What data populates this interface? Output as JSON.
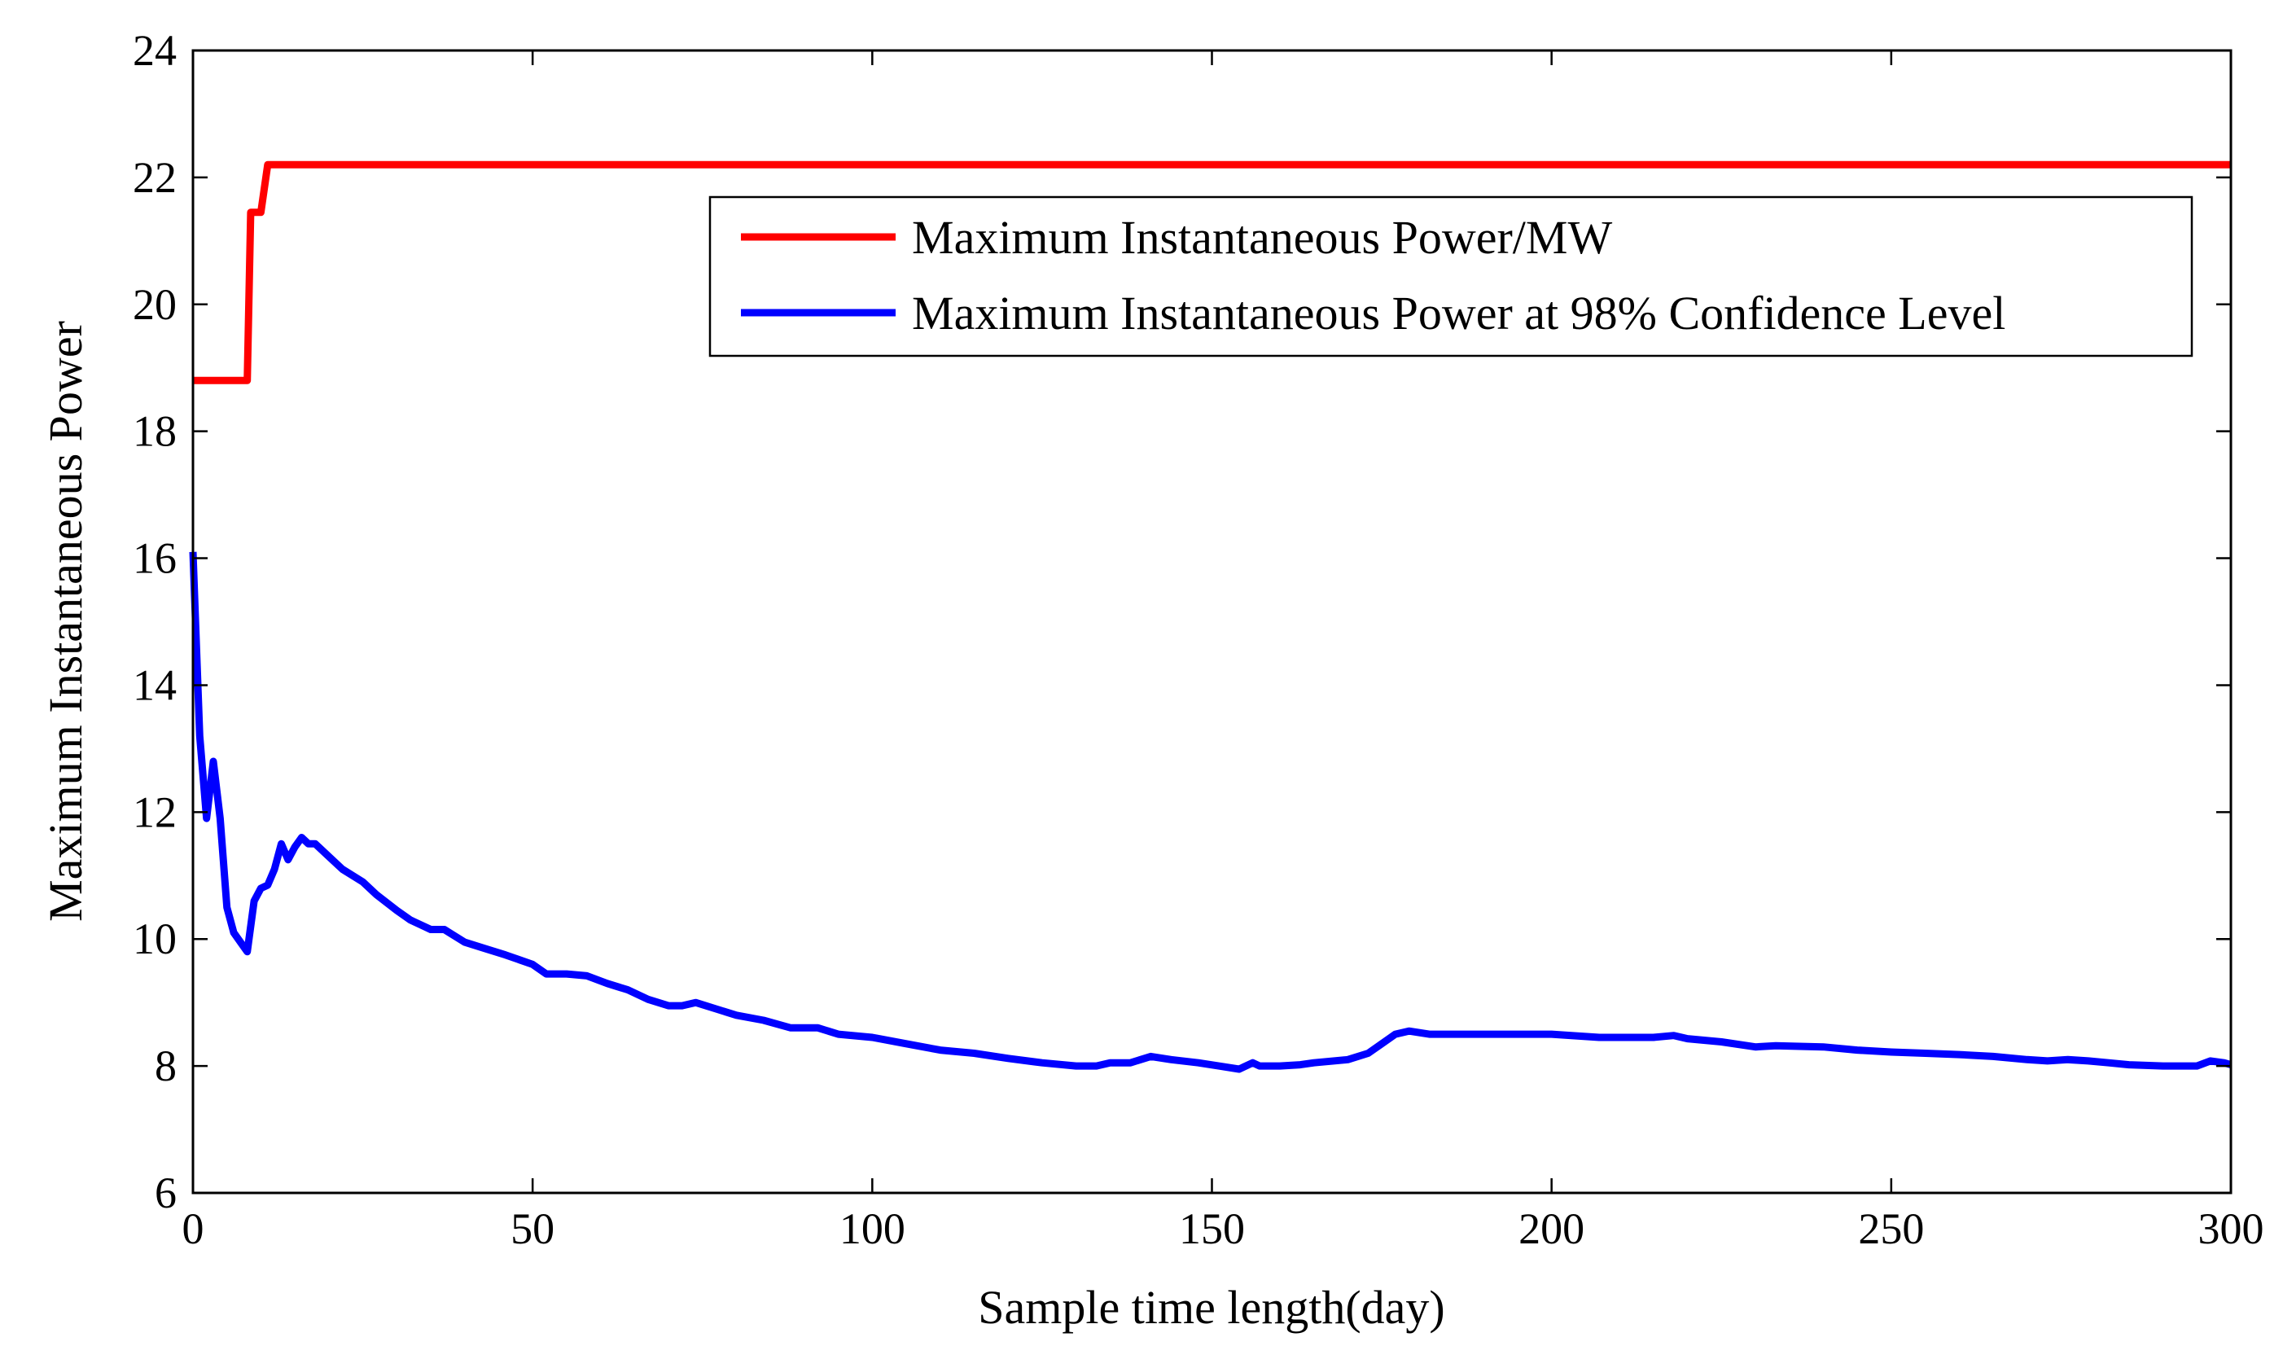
{
  "chart_data": {
    "type": "line",
    "title": "",
    "xlabel": "Sample time length(day)",
    "ylabel": "Maximum Instantaneous Power",
    "xlim": [
      0,
      300
    ],
    "ylim": [
      6,
      24
    ],
    "xticks": [
      0,
      50,
      100,
      150,
      200,
      250,
      300
    ],
    "yticks": [
      6,
      8,
      10,
      12,
      14,
      16,
      18,
      20,
      22,
      24
    ],
    "grid": false,
    "legend_position": "top-right",
    "series": [
      {
        "name": "Maximum Instantaneous Power/MW",
        "color": "#ff0000",
        "points": [
          [
            0,
            18.8
          ],
          [
            8,
            18.8
          ],
          [
            8.5,
            21.45
          ],
          [
            10,
            21.45
          ],
          [
            11,
            22.2
          ],
          [
            300,
            22.2
          ]
        ]
      },
      {
        "name": "Maximum Instantaneous Power at 98% Confidence Level",
        "color": "#0000ff",
        "points": [
          [
            0,
            16.1
          ],
          [
            1,
            13.2
          ],
          [
            2,
            11.9
          ],
          [
            3,
            12.8
          ],
          [
            4,
            11.9
          ],
          [
            5,
            10.5
          ],
          [
            6,
            10.1
          ],
          [
            7,
            9.95
          ],
          [
            8,
            9.8
          ],
          [
            9,
            10.6
          ],
          [
            10,
            10.8
          ],
          [
            11,
            10.85
          ],
          [
            12,
            11.1
          ],
          [
            13,
            11.5
          ],
          [
            14,
            11.25
          ],
          [
            15,
            11.45
          ],
          [
            16,
            11.6
          ],
          [
            17,
            11.5
          ],
          [
            18,
            11.5
          ],
          [
            20,
            11.3
          ],
          [
            22,
            11.1
          ],
          [
            25,
            10.9
          ],
          [
            27,
            10.7
          ],
          [
            30,
            10.45
          ],
          [
            32,
            10.3
          ],
          [
            35,
            10.15
          ],
          [
            37,
            10.15
          ],
          [
            40,
            9.95
          ],
          [
            43,
            9.85
          ],
          [
            46,
            9.75
          ],
          [
            50,
            9.6
          ],
          [
            52,
            9.45
          ],
          [
            55,
            9.45
          ],
          [
            58,
            9.42
          ],
          [
            61,
            9.3
          ],
          [
            64,
            9.2
          ],
          [
            67,
            9.05
          ],
          [
            70,
            8.95
          ],
          [
            72,
            8.95
          ],
          [
            74,
            9.0
          ],
          [
            77,
            8.9
          ],
          [
            80,
            8.8
          ],
          [
            84,
            8.72
          ],
          [
            88,
            8.6
          ],
          [
            92,
            8.6
          ],
          [
            95,
            8.5
          ],
          [
            100,
            8.45
          ],
          [
            105,
            8.35
          ],
          [
            110,
            8.25
          ],
          [
            115,
            8.2
          ],
          [
            120,
            8.12
          ],
          [
            125,
            8.05
          ],
          [
            130,
            8.0
          ],
          [
            133,
            8.0
          ],
          [
            135,
            8.05
          ],
          [
            138,
            8.05
          ],
          [
            141,
            8.15
          ],
          [
            144,
            8.1
          ],
          [
            148,
            8.05
          ],
          [
            151,
            8.0
          ],
          [
            154,
            7.95
          ],
          [
            156,
            8.05
          ],
          [
            157,
            8.0
          ],
          [
            160,
            8.0
          ],
          [
            163,
            8.02
          ],
          [
            165,
            8.05
          ],
          [
            170,
            8.1
          ],
          [
            173,
            8.2
          ],
          [
            175,
            8.35
          ],
          [
            177,
            8.5
          ],
          [
            179,
            8.55
          ],
          [
            182,
            8.5
          ],
          [
            190,
            8.5
          ],
          [
            200,
            8.5
          ],
          [
            207,
            8.45
          ],
          [
            215,
            8.45
          ],
          [
            218,
            8.48
          ],
          [
            220,
            8.43
          ],
          [
            225,
            8.38
          ],
          [
            230,
            8.3
          ],
          [
            233,
            8.32
          ],
          [
            240,
            8.3
          ],
          [
            245,
            8.25
          ],
          [
            250,
            8.22
          ],
          [
            255,
            8.2
          ],
          [
            260,
            8.18
          ],
          [
            265,
            8.15
          ],
          [
            270,
            8.1
          ],
          [
            273,
            8.08
          ],
          [
            276,
            8.1
          ],
          [
            279,
            8.08
          ],
          [
            282,
            8.05
          ],
          [
            285,
            8.02
          ],
          [
            290,
            8.0
          ],
          [
            295,
            8.0
          ],
          [
            297,
            8.08
          ],
          [
            299,
            8.05
          ],
          [
            300,
            8.02
          ]
        ]
      }
    ]
  }
}
